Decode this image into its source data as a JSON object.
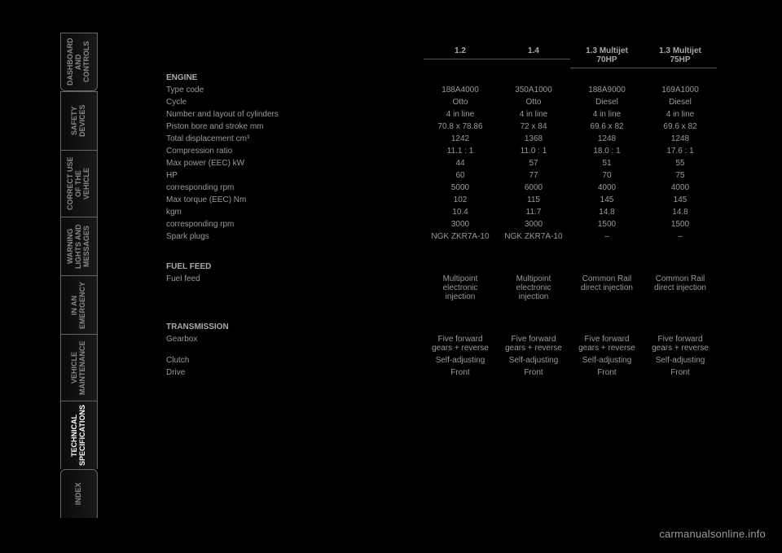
{
  "side_tabs": [
    {
      "label": "DASHBOARD\nAND CONTROLS",
      "active": false
    },
    {
      "label": "SAFETY\nDEVICES",
      "active": false
    },
    {
      "label": "CORRECT USE\nOF THE VEHICLE",
      "active": false
    },
    {
      "label": "WARNING\nLIGHTS AND\nMESSAGES",
      "active": false
    },
    {
      "label": "IN AN\nEMERGENCY",
      "active": false
    },
    {
      "label": "VEHICLE\nMAINTENANCE",
      "active": false
    },
    {
      "label": "TECHNICAL\nSPECIFICATIONS",
      "active": true
    },
    {
      "label": "INDEX",
      "active": false
    }
  ],
  "columns": [
    "1.2",
    "1.4",
    "1.3 Multijet\n70HP",
    "1.3 Multijet\n75HP"
  ],
  "sections": [
    {
      "title": "ENGINE",
      "rows": [
        {
          "label": "Type code",
          "v": [
            "188A4000",
            "350A1000",
            "188A9000",
            "169A1000"
          ]
        },
        {
          "label": "Cycle",
          "v": [
            "Otto",
            "Otto",
            "Diesel",
            "Diesel"
          ]
        },
        {
          "label": "Number and layout of cylinders",
          "v": [
            "4 in line",
            "4 in line",
            "4 in line",
            "4 in line"
          ]
        },
        {
          "label": "Piston bore and stroke           mm",
          "v": [
            "70.8 x 78.86",
            "72 x 84",
            "69.6 x 82",
            "69.6 x 82"
          ]
        },
        {
          "label": "Total displacement             cm³",
          "v": [
            "1242",
            "1368",
            "1248",
            "1248"
          ]
        },
        {
          "label": "Compression ratio",
          "v": [
            "11.1 : 1",
            "11.0 : 1",
            "18.0 : 1",
            "17.6 : 1"
          ]
        },
        {
          "label": "Max power (EEC)               kW",
          "v": [
            "44",
            "57",
            "51",
            "55"
          ]
        },
        {
          "label": "                              HP",
          "v": [
            "60",
            "77",
            "70",
            "75"
          ]
        },
        {
          "label": "corresponding rpm",
          "v": [
            "5000",
            "6000",
            "4000",
            "4000"
          ]
        },
        {
          "label": "Max torque (EEC)              Nm",
          "v": [
            "102",
            "115",
            "145",
            "145"
          ]
        },
        {
          "label": "                             kgm",
          "v": [
            "10.4",
            "11.7",
            "14.8",
            "14.8"
          ]
        },
        {
          "label": "corresponding rpm",
          "v": [
            "3000",
            "3000",
            "1500",
            "1500"
          ]
        },
        {
          "label": "Spark plugs",
          "v": [
            "NGK ZKR7A-10",
            "NGK ZKR7A-10",
            "–",
            "–"
          ]
        }
      ]
    },
    {
      "title": "FUEL FEED",
      "rows": [
        {
          "label": "Fuel feed",
          "v": [
            "Multipoint electronic injection",
            "Multipoint electronic injection",
            "Common Rail direct injection",
            "Common Rail direct injection"
          ]
        }
      ]
    },
    {
      "title": "TRANSMISSION",
      "rows": [
        {
          "label": "Gearbox",
          "v": [
            "Five forward gears + reverse",
            "Five forward gears + reverse",
            "Five forward gears + reverse",
            "Five forward gears + reverse"
          ]
        },
        {
          "label": "Clutch",
          "v": [
            "Self-adjusting",
            "Self-adjusting",
            "Self-adjusting",
            "Self-adjusting"
          ]
        },
        {
          "label": "Drive",
          "v": [
            "Front",
            "Front",
            "Front",
            "Front"
          ]
        }
      ]
    }
  ],
  "watermark": "carmanualsonline.info",
  "colors": {
    "bg": "#000000",
    "text_dim": "#9a9a9a",
    "text_active": "#ffffff",
    "border": "#666666"
  }
}
